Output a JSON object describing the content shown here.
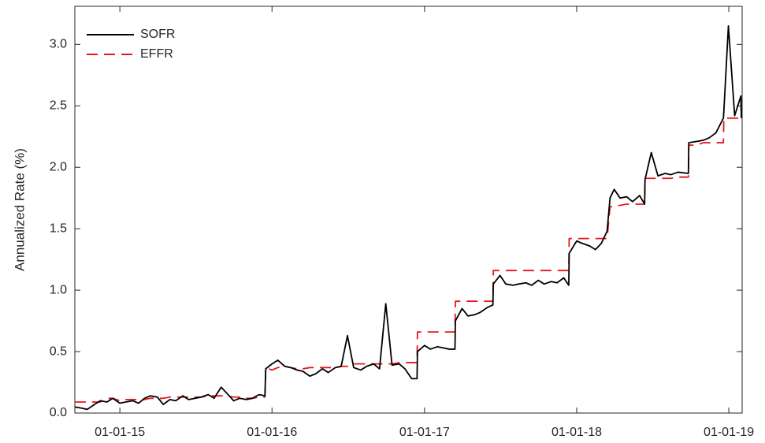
{
  "chart_data": {
    "type": "line",
    "ylabel": "Annualized Rate (%)",
    "x": [
      "2014-09-15",
      "2014-10-01",
      "2014-10-15",
      "2014-11-01",
      "2014-11-15",
      "2014-12-01",
      "2014-12-15",
      "2015-01-01",
      "2015-01-15",
      "2015-02-01",
      "2015-02-15",
      "2015-03-01",
      "2015-03-15",
      "2015-04-01",
      "2015-04-15",
      "2015-05-01",
      "2015-05-15",
      "2015-06-01",
      "2015-06-15",
      "2015-07-01",
      "2015-07-15",
      "2015-08-01",
      "2015-08-15",
      "2015-09-01",
      "2015-09-15",
      "2015-10-01",
      "2015-10-15",
      "2015-11-01",
      "2015-11-15",
      "2015-12-01",
      "2015-12-15",
      "2015-12-17",
      "2016-01-01",
      "2016-01-15",
      "2016-02-01",
      "2016-02-15",
      "2016-03-01",
      "2016-03-15",
      "2016-04-01",
      "2016-04-15",
      "2016-05-01",
      "2016-05-15",
      "2016-06-01",
      "2016-06-15",
      "2016-06-30",
      "2016-07-15",
      "2016-08-01",
      "2016-08-15",
      "2016-09-01",
      "2016-09-15",
      "2016-09-30",
      "2016-10-15",
      "2016-11-01",
      "2016-11-15",
      "2016-12-01",
      "2016-12-14",
      "2016-12-15",
      "2017-01-01",
      "2017-01-15",
      "2017-02-01",
      "2017-02-15",
      "2017-03-01",
      "2017-03-15",
      "2017-03-16",
      "2017-04-01",
      "2017-04-15",
      "2017-05-01",
      "2017-05-15",
      "2017-06-01",
      "2017-06-14",
      "2017-06-15",
      "2017-07-01",
      "2017-07-15",
      "2017-08-01",
      "2017-08-15",
      "2017-09-01",
      "2017-09-15",
      "2017-10-01",
      "2017-10-15",
      "2017-11-01",
      "2017-11-15",
      "2017-12-01",
      "2017-12-13",
      "2017-12-14",
      "2018-01-01",
      "2018-01-15",
      "2018-02-01",
      "2018-02-15",
      "2018-03-01",
      "2018-03-15",
      "2018-03-22",
      "2018-04-01",
      "2018-04-15",
      "2018-05-01",
      "2018-05-15",
      "2018-06-01",
      "2018-06-13",
      "2018-06-14",
      "2018-06-29",
      "2018-07-15",
      "2018-08-01",
      "2018-08-15",
      "2018-09-01",
      "2018-09-26",
      "2018-09-27",
      "2018-10-15",
      "2018-11-01",
      "2018-11-15",
      "2018-12-01",
      "2018-12-19",
      "2018-12-20",
      "2018-12-31",
      "2019-01-15",
      "2019-01-30",
      "2019-01-31"
    ],
    "series": [
      {
        "name": "SOFR",
        "color": "#000000",
        "dash": false,
        "values": [
          0.05,
          0.04,
          0.03,
          0.07,
          0.1,
          0.09,
          0.12,
          0.08,
          0.09,
          0.1,
          0.08,
          0.12,
          0.14,
          0.13,
          0.07,
          0.11,
          0.1,
          0.14,
          0.11,
          0.12,
          0.13,
          0.15,
          0.12,
          0.21,
          0.16,
          0.1,
          0.12,
          0.11,
          0.12,
          0.15,
          0.14,
          0.36,
          0.4,
          0.43,
          0.38,
          0.37,
          0.35,
          0.34,
          0.3,
          0.32,
          0.36,
          0.33,
          0.37,
          0.38,
          0.63,
          0.37,
          0.35,
          0.38,
          0.4,
          0.36,
          0.89,
          0.39,
          0.4,
          0.36,
          0.28,
          0.28,
          0.5,
          0.55,
          0.52,
          0.54,
          0.53,
          0.52,
          0.52,
          0.75,
          0.85,
          0.79,
          0.8,
          0.82,
          0.86,
          0.88,
          1.05,
          1.12,
          1.05,
          1.04,
          1.05,
          1.06,
          1.04,
          1.08,
          1.05,
          1.07,
          1.06,
          1.1,
          1.04,
          1.3,
          1.4,
          1.38,
          1.36,
          1.33,
          1.38,
          1.48,
          1.75,
          1.82,
          1.75,
          1.76,
          1.72,
          1.77,
          1.7,
          1.9,
          2.12,
          1.93,
          1.95,
          1.94,
          1.96,
          1.95,
          2.2,
          2.21,
          2.22,
          2.24,
          2.28,
          2.4,
          2.45,
          3.15,
          2.42,
          2.58,
          2.4
        ]
      },
      {
        "name": "EFFR",
        "color": "#e8141b",
        "dash": true,
        "values": [
          0.09,
          0.09,
          0.09,
          0.09,
          0.09,
          0.12,
          0.12,
          0.1,
          0.11,
          0.11,
          0.11,
          0.11,
          0.12,
          0.12,
          0.12,
          0.13,
          0.13,
          0.13,
          0.13,
          0.13,
          0.13,
          0.14,
          0.14,
          0.14,
          0.14,
          0.13,
          0.13,
          0.12,
          0.12,
          0.13,
          0.13,
          0.37,
          0.35,
          0.37,
          0.38,
          0.37,
          0.36,
          0.36,
          0.37,
          0.37,
          0.37,
          0.37,
          0.37,
          0.38,
          0.38,
          0.4,
          0.4,
          0.4,
          0.4,
          0.4,
          0.4,
          0.4,
          0.41,
          0.41,
          0.41,
          0.41,
          0.66,
          0.66,
          0.66,
          0.66,
          0.66,
          0.66,
          0.66,
          0.91,
          0.91,
          0.91,
          0.91,
          0.91,
          0.91,
          0.91,
          1.16,
          1.16,
          1.16,
          1.16,
          1.16,
          1.16,
          1.16,
          1.16,
          1.16,
          1.16,
          1.16,
          1.16,
          1.16,
          1.42,
          1.42,
          1.42,
          1.42,
          1.42,
          1.42,
          1.42,
          1.68,
          1.68,
          1.69,
          1.7,
          1.7,
          1.7,
          1.7,
          1.91,
          1.91,
          1.91,
          1.91,
          1.91,
          1.92,
          1.92,
          2.18,
          2.18,
          2.2,
          2.2,
          2.2,
          2.2,
          2.4,
          2.4,
          2.4,
          2.4,
          2.4
        ]
      }
    ],
    "xlim": [
      "2014-09-15",
      "2019-02-02"
    ],
    "xticks": [
      {
        "value": "2015-01-01",
        "label": "01-01-15"
      },
      {
        "value": "2016-01-01",
        "label": "01-01-16"
      },
      {
        "value": "2017-01-01",
        "label": "01-01-17"
      },
      {
        "value": "2018-01-01",
        "label": "01-01-18"
      },
      {
        "value": "2019-01-01",
        "label": "01-01-19"
      }
    ],
    "ylim": [
      0,
      3.31
    ],
    "yticks": [
      {
        "value": 0,
        "label": "0.0"
      },
      0.5,
      {
        "value": 1,
        "label": "1.0"
      },
      1.5,
      {
        "value": 2,
        "label": "2.0"
      },
      2.5,
      {
        "value": 3,
        "label": "3.0"
      }
    ],
    "grid": false,
    "legend": "upper-left"
  }
}
